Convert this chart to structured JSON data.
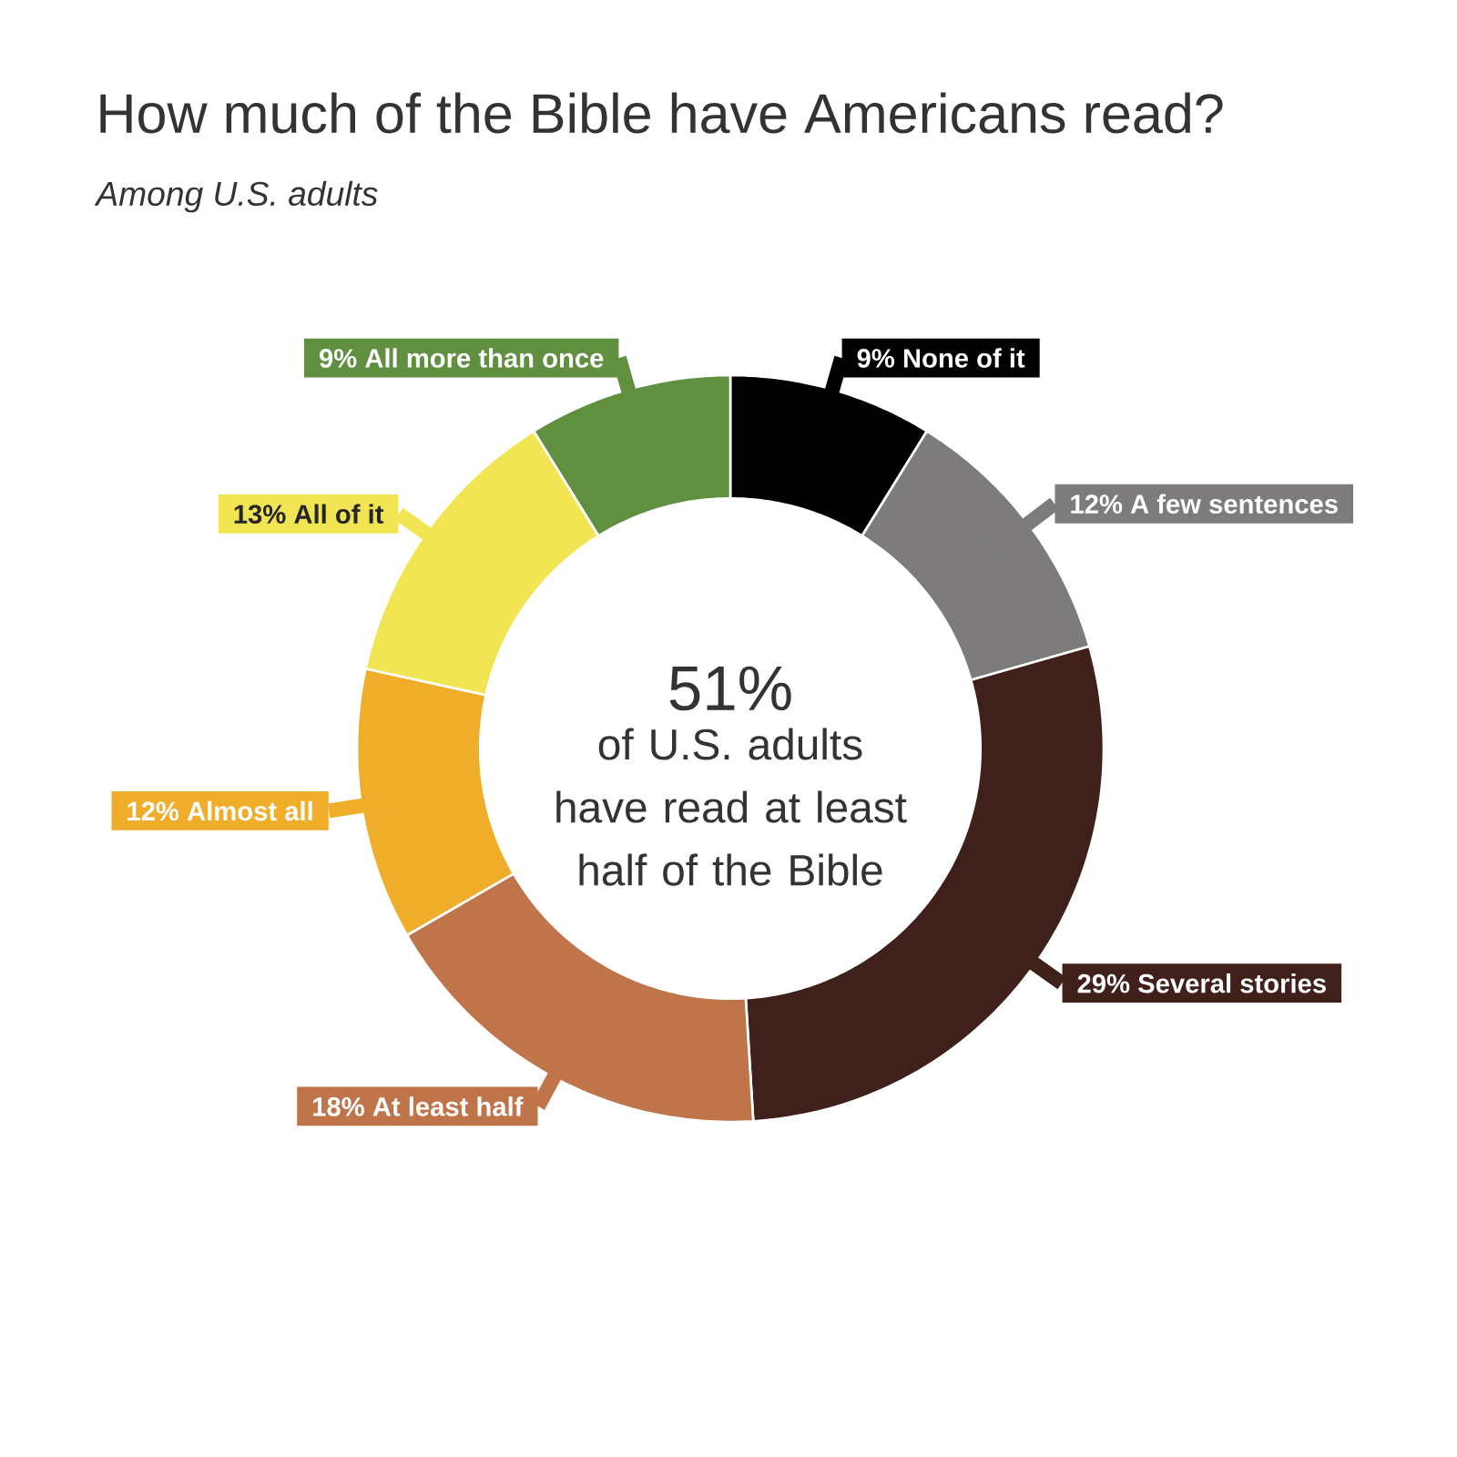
{
  "chart_data": {
    "type": "donut",
    "title": "How much of the Bible have Americans read?",
    "subtitle": "Among U.S. adults",
    "categories": [
      "None of it",
      "A few sentences",
      "Several stories",
      "At least half",
      "Almost all",
      "All of it",
      "All more than once"
    ],
    "values": [
      9,
      12,
      29,
      18,
      12,
      13,
      9
    ],
    "value_labels": [
      "9%",
      "12%",
      "29%",
      "18%",
      "12%",
      "13%",
      "9%"
    ],
    "colors": [
      "#000000",
      "#7d7b7b",
      "#40201a",
      "#c0744a",
      "#f0ad2a",
      "#f2e553",
      "#5f8f3f"
    ],
    "annotations": [
      "51%",
      "of U.S. adults have read at least half of the Bible"
    ]
  }
}
